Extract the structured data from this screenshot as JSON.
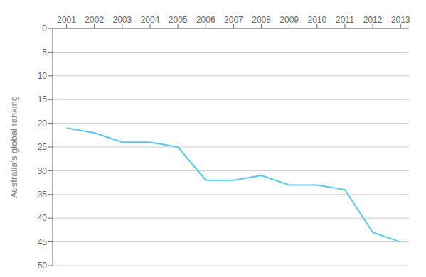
{
  "chart_data": {
    "type": "line",
    "ylabel": "Australia's global ranking",
    "x": [
      2001,
      2002,
      2003,
      2004,
      2005,
      2006,
      2007,
      2008,
      2009,
      2010,
      2011,
      2012,
      2013
    ],
    "values": [
      21,
      22,
      24,
      24,
      25,
      32,
      32,
      31,
      33,
      33,
      34,
      43,
      45
    ],
    "color": "#5bc8e8",
    "xlim": [
      2000.5,
      2013.3
    ],
    "xticks": [
      2001,
      2002,
      2003,
      2004,
      2005,
      2006,
      2007,
      2008,
      2009,
      2010,
      2011,
      2012,
      2013
    ],
    "ylim": [
      50,
      0
    ],
    "yticks": [
      0,
      5,
      10,
      15,
      20,
      25,
      30,
      35,
      40,
      45,
      50
    ],
    "grid": "y"
  }
}
